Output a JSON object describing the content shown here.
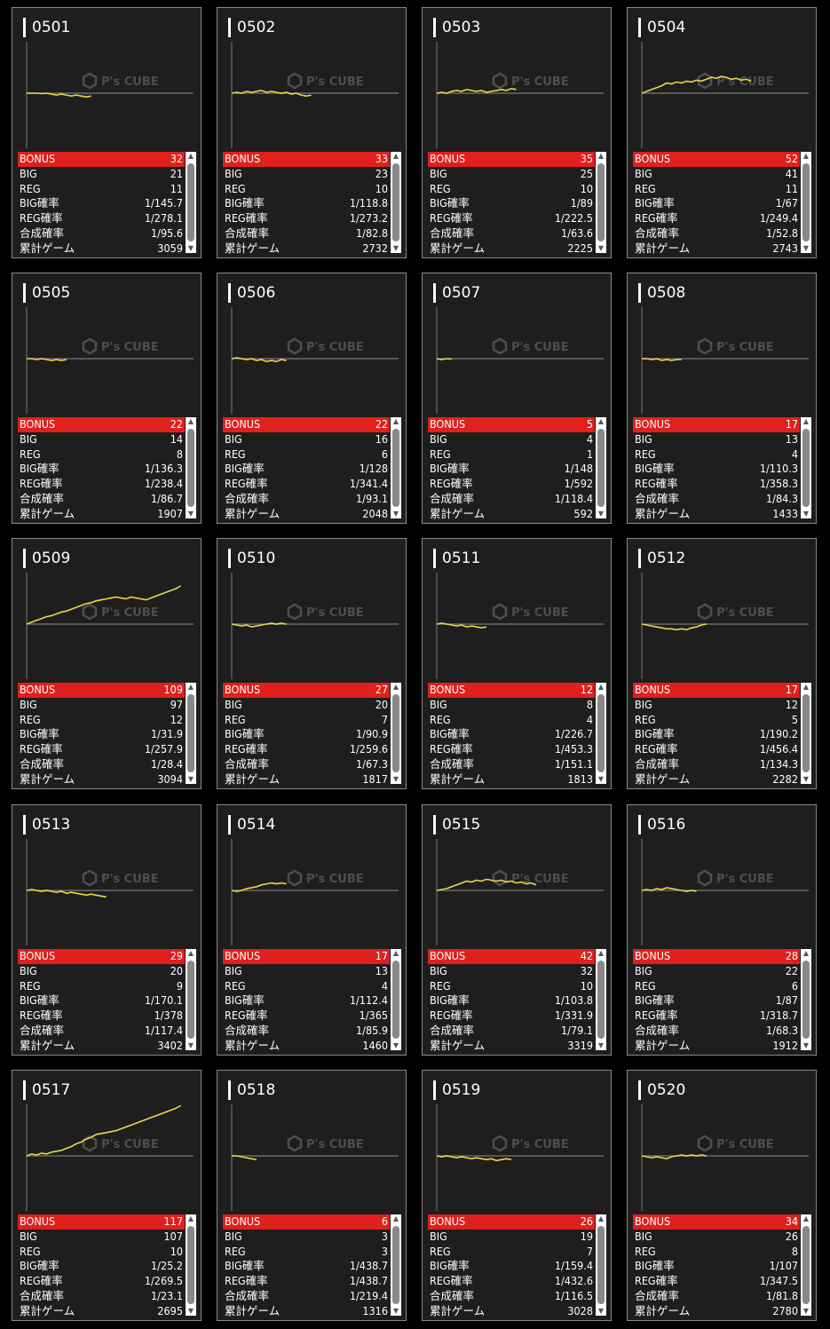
{
  "labels": {
    "bonus": "BONUS",
    "big": "BIG",
    "reg": "REG",
    "big_rate": "BIG確率",
    "reg_rate": "REG確率",
    "combined_rate": "合成確率",
    "total_games": "累計ゲーム"
  },
  "watermark": "P's CUBE",
  "colors": {
    "accent": "#e0201c",
    "graph_line": "#e8d84a",
    "baseline": "#6a6a6a"
  },
  "machines": [
    {
      "id": "0501",
      "bonus": "32",
      "big": "21",
      "reg": "11",
      "big_rate": "1/145.7",
      "reg_rate": "1/278.1",
      "combined_rate": "1/95.6",
      "total_games": "3059",
      "graph": [
        0,
        0,
        0,
        -0.5,
        0,
        -1,
        -2,
        -1,
        -2,
        -3,
        -2,
        -3,
        -4,
        -3
      ]
    },
    {
      "id": "0502",
      "bonus": "33",
      "big": "23",
      "reg": "10",
      "big_rate": "1/118.8",
      "reg_rate": "1/273.2",
      "combined_rate": "1/82.8",
      "total_games": "2732",
      "graph": [
        0,
        1,
        0,
        2,
        1,
        2,
        3,
        1,
        2,
        1,
        0,
        1,
        -1,
        0,
        -2,
        -3,
        -2
      ]
    },
    {
      "id": "0503",
      "bonus": "35",
      "big": "25",
      "reg": "10",
      "big_rate": "1/89",
      "reg_rate": "1/222.5",
      "combined_rate": "1/63.6",
      "total_games": "2225",
      "graph": [
        0,
        1,
        0,
        2,
        3,
        2,
        4,
        3,
        2,
        3,
        1,
        2,
        3,
        4,
        3,
        5,
        4
      ]
    },
    {
      "id": "0504",
      "bonus": "52",
      "big": "41",
      "reg": "11",
      "big_rate": "1/67",
      "reg_rate": "1/249.4",
      "combined_rate": "1/52.8",
      "total_games": "2743",
      "graph": [
        0,
        2,
        4,
        6,
        8,
        11,
        10,
        12,
        11,
        13,
        12,
        14,
        13,
        15,
        17,
        16,
        18,
        17,
        15,
        16,
        14,
        15,
        13
      ]
    },
    {
      "id": "0505",
      "bonus": "22",
      "big": "14",
      "reg": "8",
      "big_rate": "1/136.3",
      "reg_rate": "1/238.4",
      "combined_rate": "1/86.7",
      "total_games": "1907",
      "graph": [
        0,
        0,
        -1,
        0,
        -1,
        -2,
        -1,
        -2,
        -1
      ]
    },
    {
      "id": "0506",
      "bonus": "22",
      "big": "16",
      "reg": "6",
      "big_rate": "1/128",
      "reg_rate": "1/341.4",
      "combined_rate": "1/93.1",
      "total_games": "2048",
      "graph": [
        0,
        1,
        0,
        -1,
        0,
        -2,
        -1,
        -3,
        -2,
        -3,
        -1,
        -2
      ]
    },
    {
      "id": "0507",
      "bonus": "5",
      "big": "4",
      "reg": "1",
      "big_rate": "1/148",
      "reg_rate": "1/592",
      "combined_rate": "1/118.4",
      "total_games": "592",
      "graph": [
        0,
        -1,
        0,
        -0.5
      ]
    },
    {
      "id": "0508",
      "bonus": "17",
      "big": "13",
      "reg": "4",
      "big_rate": "1/110.3",
      "reg_rate": "1/358.3",
      "combined_rate": "1/84.3",
      "total_games": "1433",
      "graph": [
        0,
        0,
        -1,
        0,
        -2,
        -1,
        -2,
        -1,
        -1
      ]
    },
    {
      "id": "0509",
      "bonus": "109",
      "big": "97",
      "reg": "12",
      "big_rate": "1/31.9",
      "reg_rate": "1/257.9",
      "combined_rate": "1/28.4",
      "total_games": "3094",
      "graph": [
        0,
        2,
        4,
        6,
        8,
        9,
        11,
        13,
        14,
        16,
        18,
        20,
        22,
        23,
        25,
        26,
        27,
        28,
        29,
        28,
        27,
        29,
        28,
        27,
        26,
        28,
        30,
        32,
        34,
        36,
        38,
        41
      ]
    },
    {
      "id": "0510",
      "bonus": "27",
      "big": "20",
      "reg": "7",
      "big_rate": "1/90.9",
      "reg_rate": "1/259.6",
      "combined_rate": "1/67.3",
      "total_games": "1817",
      "graph": [
        0,
        -1,
        -2,
        -1,
        -3,
        -2,
        -1,
        0,
        1,
        0,
        1,
        0
      ]
    },
    {
      "id": "0511",
      "bonus": "12",
      "big": "8",
      "reg": "4",
      "big_rate": "1/226.7",
      "reg_rate": "1/453.3",
      "combined_rate": "1/151.1",
      "total_games": "1813",
      "graph": [
        0,
        1,
        0,
        -1,
        -2,
        -1,
        -3,
        -2,
        -3,
        -4,
        -3
      ]
    },
    {
      "id": "0512",
      "bonus": "17",
      "big": "12",
      "reg": "5",
      "big_rate": "1/190.2",
      "reg_rate": "1/456.4",
      "combined_rate": "1/134.3",
      "total_games": "2282",
      "graph": [
        0,
        -1,
        -2,
        -3,
        -4,
        -5,
        -5,
        -6,
        -5,
        -6,
        -4,
        -3,
        -1,
        0
      ]
    },
    {
      "id": "0513",
      "bonus": "29",
      "big": "20",
      "reg": "9",
      "big_rate": "1/170.1",
      "reg_rate": "1/378",
      "combined_rate": "1/117.4",
      "total_games": "3402",
      "graph": [
        0,
        1,
        0,
        -1,
        0,
        -1,
        -2,
        -1,
        -3,
        -2,
        -3,
        -4,
        -5,
        -4,
        -5,
        -6,
        -7
      ]
    },
    {
      "id": "0514",
      "bonus": "17",
      "big": "13",
      "reg": "4",
      "big_rate": "1/112.4",
      "reg_rate": "1/365",
      "combined_rate": "1/85.9",
      "total_games": "1460",
      "graph": [
        0,
        -1,
        0,
        2,
        3,
        4,
        6,
        7,
        8,
        7,
        8,
        7
      ]
    },
    {
      "id": "0515",
      "bonus": "42",
      "big": "32",
      "reg": "10",
      "big_rate": "1/103.8",
      "reg_rate": "1/331.9",
      "combined_rate": "1/79.1",
      "total_games": "3319",
      "graph": [
        0,
        1,
        2,
        4,
        6,
        8,
        10,
        9,
        11,
        10,
        12,
        11,
        10,
        11,
        9,
        10,
        8,
        9,
        7,
        8,
        6
      ]
    },
    {
      "id": "0516",
      "bonus": "28",
      "big": "22",
      "reg": "6",
      "big_rate": "1/87",
      "reg_rate": "1/318.7",
      "combined_rate": "1/68.3",
      "total_games": "1912",
      "graph": [
        0,
        1,
        0,
        2,
        1,
        3,
        2,
        1,
        0,
        -1,
        0,
        -1
      ]
    },
    {
      "id": "0517",
      "bonus": "117",
      "big": "107",
      "reg": "10",
      "big_rate": "1/25.2",
      "reg_rate": "1/269.5",
      "combined_rate": "1/23.1",
      "total_games": "2695",
      "graph": [
        0,
        2,
        1,
        3,
        2,
        4,
        5,
        6,
        8,
        10,
        13,
        15,
        18,
        20,
        23,
        24,
        25,
        26,
        27,
        29,
        31,
        33,
        35,
        37,
        39,
        41,
        43,
        45,
        47,
        49,
        51,
        54
      ]
    },
    {
      "id": "0518",
      "bonus": "6",
      "big": "3",
      "reg": "3",
      "big_rate": "1/438.7",
      "reg_rate": "1/438.7",
      "combined_rate": "1/219.4",
      "total_games": "1316",
      "graph": [
        0,
        0,
        -1,
        -2,
        -3,
        -4
      ]
    },
    {
      "id": "0519",
      "bonus": "26",
      "big": "19",
      "reg": "7",
      "big_rate": "1/159.4",
      "reg_rate": "1/432.6",
      "combined_rate": "1/116.5",
      "total_games": "3028",
      "graph": [
        0,
        -1,
        0,
        -1,
        -2,
        -1,
        -2,
        -3,
        -2,
        -3,
        -4,
        -3,
        -5,
        -4,
        -3,
        -4
      ]
    },
    {
      "id": "0520",
      "bonus": "34",
      "big": "26",
      "reg": "8",
      "big_rate": "1/107",
      "reg_rate": "1/347.5",
      "combined_rate": "1/81.8",
      "total_games": "2780",
      "graph": [
        0,
        -1,
        -2,
        -1,
        -2,
        -3,
        -1,
        0,
        1,
        0,
        1,
        0,
        1,
        0
      ]
    }
  ]
}
